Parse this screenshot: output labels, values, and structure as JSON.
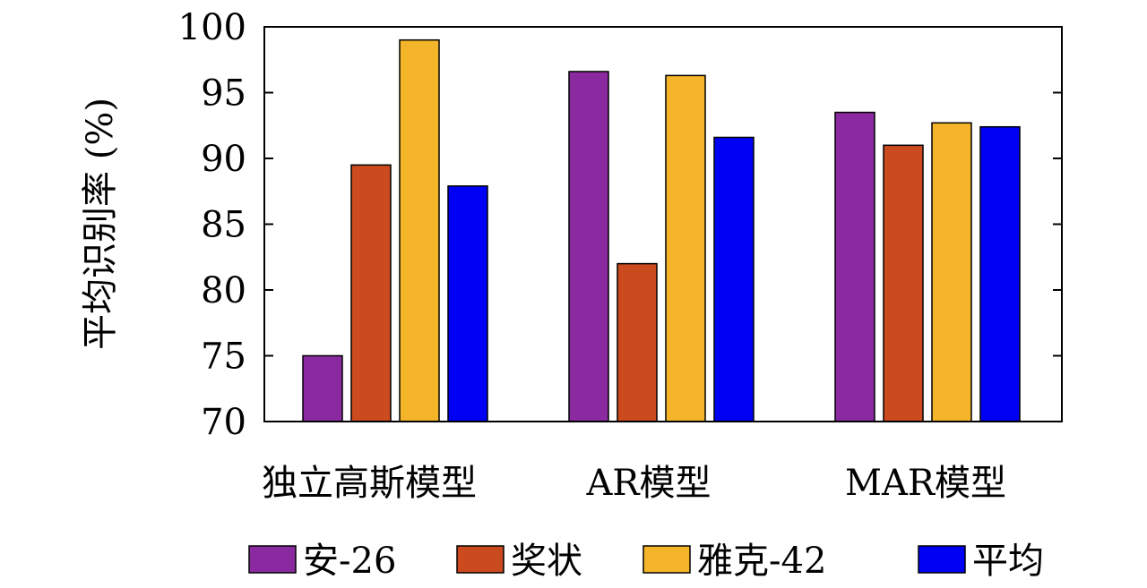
{
  "chart_data": {
    "type": "bar",
    "title": "",
    "xlabel": "",
    "ylabel": "平均识别率 (%)",
    "categories": [
      "独立高斯模型",
      "AR模型",
      "MAR模型"
    ],
    "series": [
      {
        "name": "安-26",
        "color": "#8b2aa0",
        "values": [
          75.0,
          96.6,
          93.5
        ]
      },
      {
        "name": "奖状",
        "color": "#cc4b1e",
        "values": [
          89.5,
          82.0,
          91.0
        ]
      },
      {
        "name": "雅克-42",
        "color": "#f5b52a",
        "values": [
          99.0,
          96.3,
          92.7
        ]
      },
      {
        "name": "平均",
        "color": "#0000f5",
        "values": [
          87.9,
          91.6,
          92.4
        ]
      }
    ],
    "ylim": [
      70,
      100
    ],
    "yticks": [
      70,
      75,
      80,
      85,
      90,
      95,
      100
    ],
    "grid": false,
    "legend_position": "bottom"
  }
}
